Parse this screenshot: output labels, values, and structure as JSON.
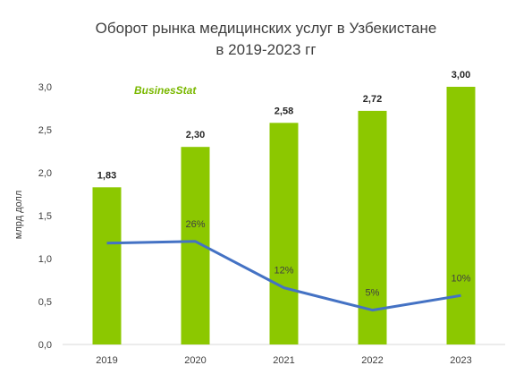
{
  "chart_data": {
    "type": "bar",
    "title": "Оборот рынка медицинских услуг в Узбекистане",
    "subtitle": "в 2019-2023 гг",
    "ylabel": "млрд долл",
    "categories": [
      "2019",
      "2020",
      "2021",
      "2022",
      "2023"
    ],
    "series": [
      {
        "type": "bar",
        "values": [
          1.83,
          2.3,
          2.58,
          2.72,
          3.0
        ],
        "labels": [
          "1,83",
          "2,30",
          "2,58",
          "2,72",
          "3,00"
        ]
      },
      {
        "type": "line",
        "values": [
          null,
          26,
          12,
          5,
          10
        ],
        "labels": [
          "",
          "26%",
          "12%",
          "5%",
          "10%"
        ],
        "plot_positions": [
          1.18,
          1.2,
          0.66,
          0.4,
          0.57
        ]
      }
    ],
    "ylim": [
      0,
      3.0
    ],
    "yticks": [
      "0,0",
      "0,5",
      "1,0",
      "1,5",
      "2,0",
      "2,5",
      "3,0"
    ],
    "grid": false
  },
  "logo": "BusinesStat",
  "colors": {
    "bar": "#8cc800",
    "line": "#4472c4",
    "text": "#404040"
  }
}
